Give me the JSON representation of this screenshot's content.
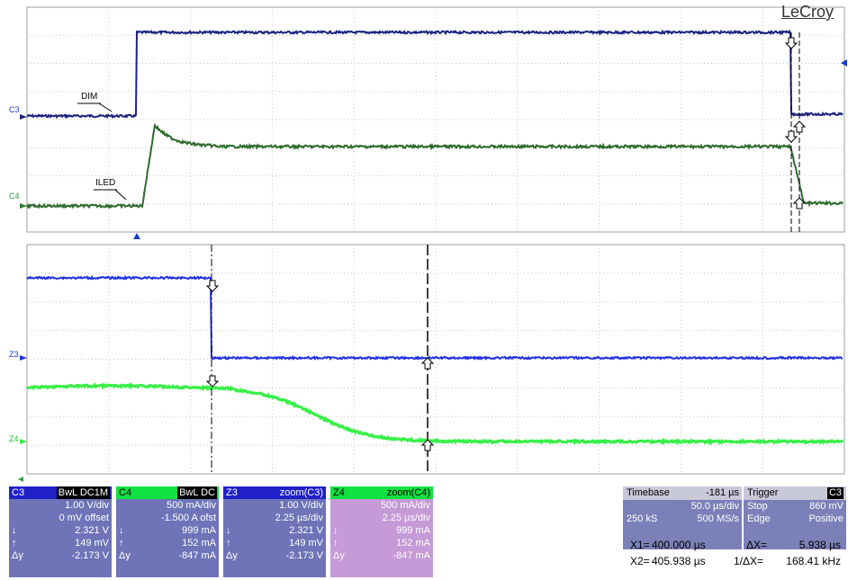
{
  "brand": "LeCroy",
  "channels": {
    "c3_label": "C3",
    "c4_label": "C4",
    "z3_label": "Z3",
    "z4_label": "Z4",
    "dim_label": "DIM",
    "iled_label": "ILED"
  },
  "panels": [
    {
      "id": "C3",
      "tag": "C3",
      "tail": "BwL DC1M",
      "rows": [
        {
          "sym": "",
          "val": "1.00 V/div"
        },
        {
          "sym": "",
          "val": "0 mV offset"
        },
        {
          "sym": "↓",
          "val": "2.321 V"
        },
        {
          "sym": "↑",
          "val": "149 mV"
        },
        {
          "sym": "Δy",
          "val": "-2.173 V"
        }
      ]
    },
    {
      "id": "C4",
      "tag": "C4",
      "tail": "BwL DC",
      "rows": [
        {
          "sym": "",
          "val": "500 mA/div"
        },
        {
          "sym": "",
          "val": "-1.500 A ofst"
        },
        {
          "sym": "↓",
          "val": "999 mA"
        },
        {
          "sym": "↑",
          "val": "152 mA"
        },
        {
          "sym": "Δy",
          "val": "-847 mA"
        }
      ]
    },
    {
      "id": "Z3",
      "tag": "Z3",
      "tail": "zoom(C3)",
      "rows": [
        {
          "sym": "",
          "val": "1.00 V/div"
        },
        {
          "sym": "",
          "val": "2.25 µs/div"
        },
        {
          "sym": "↓",
          "val": "2.321 V"
        },
        {
          "sym": "↑",
          "val": "149 mV"
        },
        {
          "sym": "Δy",
          "val": "-2.173 V"
        }
      ]
    },
    {
      "id": "Z4",
      "tag": "Z4",
      "tail": "zoom(C4)",
      "rows": [
        {
          "sym": "",
          "val": "500 mA/div"
        },
        {
          "sym": "",
          "val": "2.25 µs/div"
        },
        {
          "sym": "↓",
          "val": "999 mA"
        },
        {
          "sym": "↑",
          "val": "152 mA"
        },
        {
          "sym": "Δy",
          "val": "-847 mA"
        }
      ]
    }
  ],
  "timebase": {
    "label": "Timebase",
    "delay": "-181 µs",
    "per_div": "50.0 µs/div",
    "samples": "250 kS",
    "rate": "500 MS/s"
  },
  "trigger": {
    "label": "Trigger",
    "channel": "C3",
    "mode": "Stop",
    "level": "860 mV",
    "type": "Edge",
    "slope": "Positive"
  },
  "measurements": {
    "x1_label": "X1=",
    "x1": "400.000 µs",
    "dx_label": "ΔX=",
    "dx": "5.938 µs",
    "x2_label": "X2=",
    "x2": "405.938 µs",
    "inv_label": "1/ΔX=",
    "inv": "168.41 kHz"
  },
  "colors": {
    "c3": "#1a237e",
    "c4": "#2e7d32",
    "z3": "#2030e0",
    "z4": "#30f040",
    "grid": "#bdbdbd"
  }
}
